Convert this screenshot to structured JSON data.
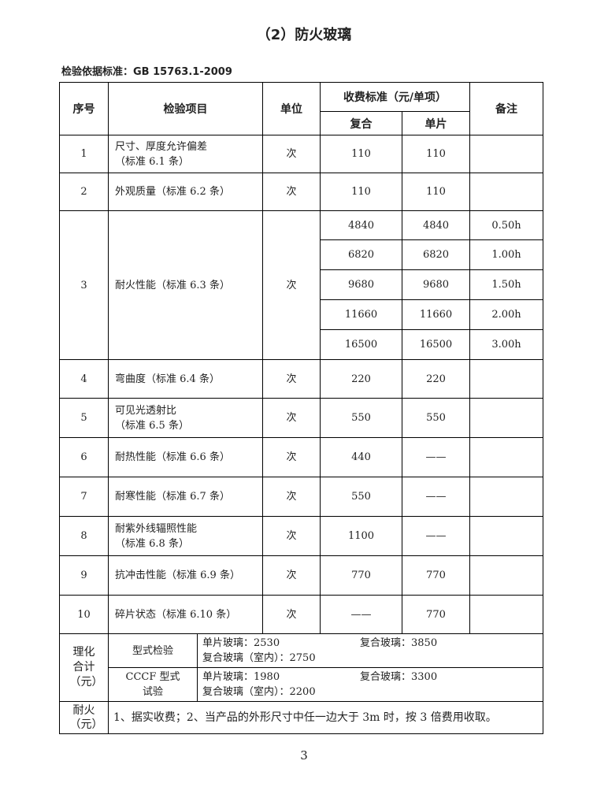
{
  "title": "（2）防火玻璃",
  "standard": "检验依据标准：GB 15763.1-2009",
  "headers": {
    "no": "序号",
    "item": "检验项目",
    "unit": "单位",
    "fee": "收费标准（元/单项）",
    "composite": "复合",
    "single": "单片",
    "note": "备注"
  },
  "rows": [
    {
      "no": "1",
      "item": [
        "尺寸、厚度允许偏差",
        "（标准 6.1 条）"
      ],
      "unit": "次",
      "composite": "110",
      "single": "110"
    },
    {
      "no": "2",
      "item": [
        "外观质量（标准 6.2 条）"
      ],
      "unit": "次",
      "composite": "110",
      "single": "110"
    },
    {
      "no": "3",
      "item": [
        "耐火性能（标准 6.3 条）"
      ],
      "unit": "次",
      "sub": [
        {
          "composite": "4840",
          "single": "4840",
          "note": "0.50h"
        },
        {
          "composite": "6820",
          "single": "6820",
          "note": "1.00h"
        },
        {
          "composite": "9680",
          "single": "9680",
          "note": "1.50h"
        },
        {
          "composite": "11660",
          "single": "11660",
          "note": "2.00h"
        },
        {
          "composite": "16500",
          "single": "16500",
          "note": "3.00h"
        }
      ]
    },
    {
      "no": "4",
      "item": [
        "弯曲度（标准 6.4 条）"
      ],
      "unit": "次",
      "composite": "220",
      "single": "220"
    },
    {
      "no": "5",
      "item": [
        "可见光透射比",
        "（标准 6.5 条）"
      ],
      "unit": "次",
      "composite": "550",
      "single": "550"
    },
    {
      "no": "6",
      "item": [
        "耐热性能（标准 6.6 条）"
      ],
      "unit": "次",
      "composite": "440",
      "single": "——"
    },
    {
      "no": "7",
      "item": [
        "耐寒性能（标准 6.7 条）"
      ],
      "unit": "次",
      "composite": "550",
      "single": "——"
    },
    {
      "no": "8",
      "item": [
        "耐紫外线辐照性能",
        "（标准 6.8 条）"
      ],
      "unit": "次",
      "composite": "1100",
      "single": "——"
    },
    {
      "no": "9",
      "item": [
        "抗冲击性能（标准 6.9 条）"
      ],
      "unit": "次",
      "composite": "770",
      "single": "770"
    },
    {
      "no": "10",
      "item": [
        "碎片状态（标准 6.10 条）"
      ],
      "unit": "次",
      "composite": "——",
      "single": "770"
    }
  ],
  "summary": {
    "label": "理化合计（元）",
    "rows": [
      {
        "type": "型式检验",
        "single": "单片玻璃：2530",
        "composite": "复合玻璃：3850",
        "indoor": "复合玻璃（室内）：2750"
      },
      {
        "type": "CCCF 型式试验",
        "single": "单片玻璃：1980",
        "composite": "复合玻璃：3300",
        "indoor": "复合玻璃（室内）：2200"
      }
    ]
  },
  "fire": {
    "label": "耐火（元）",
    "text": "1、据实收费；2、当产品的外形尺寸中任一边大于 3m 时，按 3 倍费用收取。"
  },
  "page_number": "3"
}
